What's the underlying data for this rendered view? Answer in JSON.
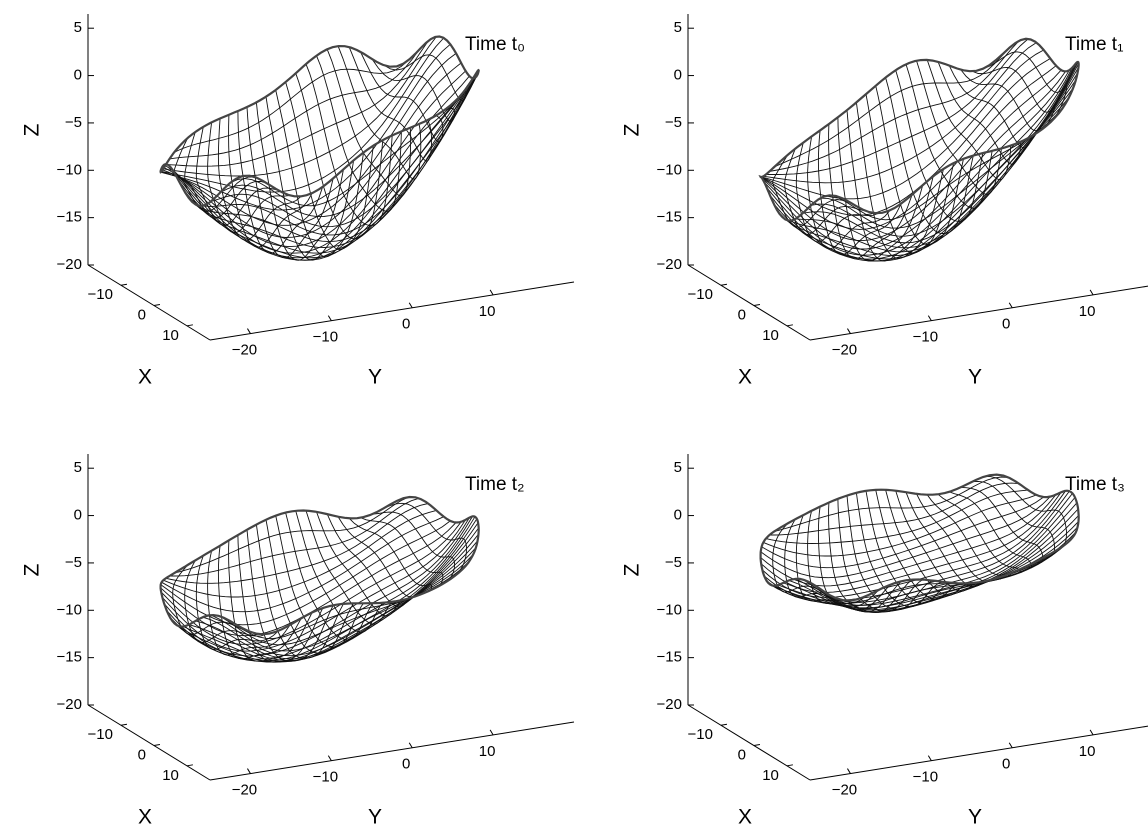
{
  "chart_data": [
    {
      "type": "surface",
      "title": "Time t₀",
      "xlabel": "X",
      "ylabel": "Y",
      "zlabel": "Z",
      "xlim": [
        -20,
        17
      ],
      "ylim": [
        -25,
        20
      ],
      "zlim": [
        -20,
        6.5
      ],
      "xticks": [
        {
          "value": -10,
          "label": "−10"
        },
        0,
        10
      ],
      "yticks": [
        {
          "value": -20,
          "label": "−20"
        },
        {
          "value": -10,
          "label": "−10"
        },
        0,
        10
      ],
      "zticks": [
        {
          "value": -20,
          "label": "−20"
        },
        {
          "value": -15,
          "label": "−15"
        },
        {
          "value": -10,
          "label": "−10"
        },
        {
          "value": -5,
          "label": "−5"
        },
        0,
        5
      ]
    },
    {
      "type": "surface",
      "title": "Time t₁",
      "xlabel": "X",
      "ylabel": "Y",
      "zlabel": "Z",
      "xlim": [
        -20,
        17
      ],
      "ylim": [
        -25,
        20
      ],
      "zlim": [
        -20,
        6.5
      ],
      "xticks": [
        {
          "value": -10,
          "label": "−10"
        },
        0,
        10
      ],
      "yticks": [
        {
          "value": -20,
          "label": "−20"
        },
        {
          "value": -10,
          "label": "−10"
        },
        0,
        10
      ],
      "zticks": [
        {
          "value": -20,
          "label": "−20"
        },
        {
          "value": -15,
          "label": "−15"
        },
        {
          "value": -10,
          "label": "−10"
        },
        {
          "value": -5,
          "label": "−5"
        },
        0,
        5
      ]
    },
    {
      "type": "surface",
      "title": "Time t₂",
      "xlabel": "X",
      "ylabel": "Y",
      "zlabel": "Z",
      "xlim": [
        -20,
        17
      ],
      "ylim": [
        -25,
        20
      ],
      "zlim": [
        -20,
        6.5
      ],
      "xticks": [
        {
          "value": -10,
          "label": "−10"
        },
        0,
        10
      ],
      "yticks": [
        {
          "value": -20,
          "label": "−20"
        },
        {
          "value": -10,
          "label": "−10"
        },
        0,
        10
      ],
      "zticks": [
        {
          "value": -20,
          "label": "−20"
        },
        {
          "value": -15,
          "label": "−15"
        },
        {
          "value": -10,
          "label": "−10"
        },
        {
          "value": -5,
          "label": "−5"
        },
        0,
        5
      ]
    },
    {
      "type": "surface",
      "title": "Time t₃",
      "xlabel": "X",
      "ylabel": "Y",
      "zlabel": "Z",
      "xlim": [
        -20,
        17
      ],
      "ylim": [
        -25,
        20
      ],
      "zlim": [
        -20,
        6.5
      ],
      "xticks": [
        {
          "value": -10,
          "label": "−10"
        },
        0,
        10
      ],
      "yticks": [
        {
          "value": -20,
          "label": "−20"
        },
        {
          "value": -10,
          "label": "−10"
        },
        0,
        10
      ],
      "zticks": [
        {
          "value": -20,
          "label": "−20"
        },
        {
          "value": -15,
          "label": "−15"
        },
        {
          "value": -10,
          "label": "−10"
        },
        {
          "value": -5,
          "label": "−5"
        },
        0,
        5
      ]
    }
  ]
}
